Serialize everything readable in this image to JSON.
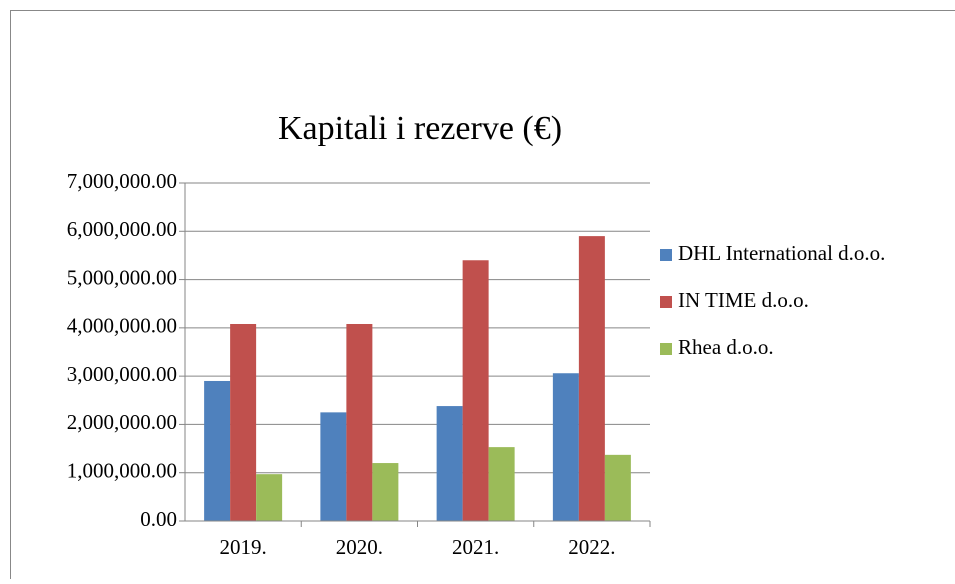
{
  "chart_data": {
    "type": "bar",
    "title": "Kapitali i rezerve (€)",
    "categories": [
      "2019.",
      "2020.",
      "2021.",
      "2022."
    ],
    "series": [
      {
        "name": "DHL International d.o.o.",
        "color": "#4f81bd",
        "values": [
          2900000,
          2250000,
          2380000,
          3060000
        ]
      },
      {
        "name": "IN TIME d.o.o.",
        "color": "#c0504d",
        "values": [
          4080000,
          4080000,
          5400000,
          5900000
        ]
      },
      {
        "name": "Rhea d.o.o.",
        "color": "#9bbb59",
        "values": [
          970000,
          1200000,
          1530000,
          1370000
        ]
      }
    ],
    "ylim": [
      0,
      7000000
    ],
    "yticks": [
      {
        "value": 0,
        "label": "0.00"
      },
      {
        "value": 1000000,
        "label": "1,000,000.00"
      },
      {
        "value": 2000000,
        "label": "2,000,000.00"
      },
      {
        "value": 3000000,
        "label": "3,000,000.00"
      },
      {
        "value": 4000000,
        "label": "4,000,000.00"
      },
      {
        "value": 5000000,
        "label": "5,000,000.00"
      },
      {
        "value": 6000000,
        "label": "6,000,000.00"
      },
      {
        "value": 7000000,
        "label": "7,000,000.00"
      }
    ],
    "grid": true,
    "legend": "right"
  }
}
